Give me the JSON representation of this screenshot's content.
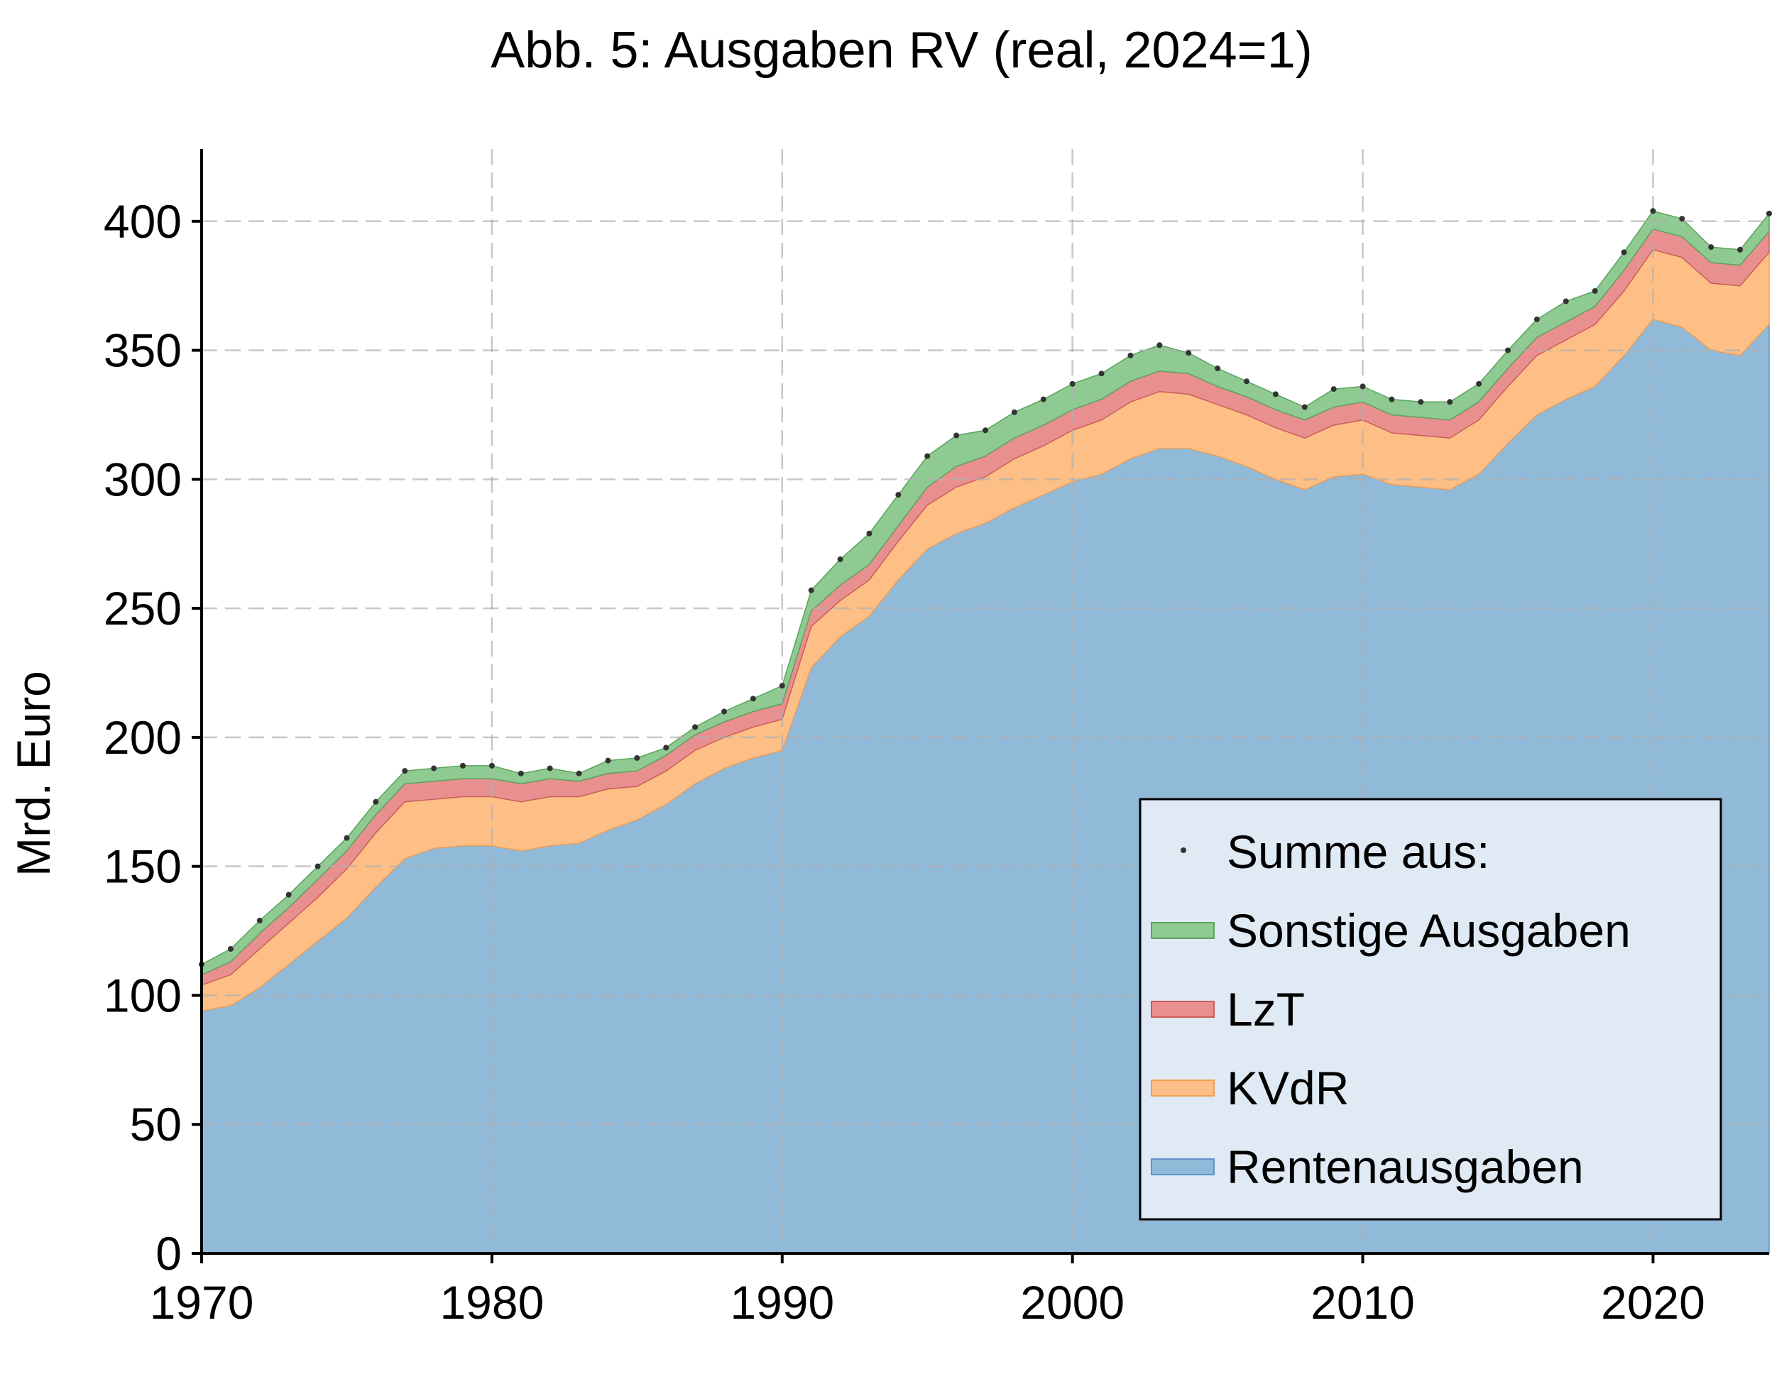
{
  "chart_data": {
    "type": "area",
    "title": "Abb. 5: Ausgaben RV (real, 2024=1)",
    "xlabel": "",
    "ylabel": "Mrd. Euro",
    "xlim": [
      1970,
      2024
    ],
    "ylim": [
      0,
      428
    ],
    "xticks": [
      1970,
      1980,
      1990,
      2000,
      2010,
      2020
    ],
    "xtick_labels": [
      "1970",
      "1980",
      "1990",
      "2000",
      "2010",
      "2020"
    ],
    "yticks": [
      0,
      50,
      100,
      150,
      200,
      250,
      300,
      350,
      400
    ],
    "ytick_labels": [
      "0",
      "50",
      "100",
      "150",
      "200",
      "250",
      "300",
      "350",
      "400"
    ],
    "grid": true,
    "legend_position": "bottom-right",
    "x": [
      1970,
      1971,
      1972,
      1973,
      1974,
      1975,
      1976,
      1977,
      1978,
      1979,
      1980,
      1981,
      1982,
      1983,
      1984,
      1985,
      1986,
      1987,
      1988,
      1989,
      1990,
      1991,
      1992,
      1993,
      1994,
      1995,
      1996,
      1997,
      1998,
      1999,
      2000,
      2001,
      2002,
      2003,
      2004,
      2005,
      2006,
      2007,
      2008,
      2009,
      2010,
      2011,
      2012,
      2013,
      2014,
      2015,
      2016,
      2017,
      2018,
      2019,
      2020,
      2021,
      2022,
      2023,
      2024
    ],
    "series": [
      {
        "name": "Rentenausgaben",
        "color": "#91b9d8",
        "values": [
          94,
          96,
          103,
          112,
          121,
          130,
          142,
          153,
          157,
          158,
          158,
          156,
          158,
          159,
          164,
          168,
          174,
          182,
          188,
          192,
          195,
          227,
          239,
          247,
          261,
          273,
          279,
          283,
          289,
          294,
          299,
          302,
          308,
          312,
          312,
          309,
          305,
          300,
          296,
          301,
          302,
          298,
          297,
          296,
          302,
          314,
          325,
          331,
          336,
          348,
          362,
          359,
          350,
          348,
          360
        ]
      },
      {
        "name": "KVdR",
        "color": "#fdbf86",
        "values": [
          10,
          12,
          15,
          16,
          17,
          19,
          21,
          22,
          19,
          19,
          19,
          19,
          19,
          18,
          16,
          13,
          13,
          13,
          12,
          12,
          12,
          16,
          14,
          14,
          15,
          17,
          18,
          18,
          19,
          19,
          20,
          21,
          22,
          22,
          21,
          20,
          20,
          20,
          20,
          20,
          21,
          20,
          20,
          20,
          21,
          22,
          23,
          23,
          24,
          25,
          27,
          27,
          26,
          27,
          28
        ]
      },
      {
        "name": "LzT",
        "color": "#e89090",
        "values": [
          4,
          5,
          6,
          6,
          7,
          7,
          7,
          7,
          7,
          7,
          7,
          7,
          7,
          6,
          6,
          6,
          6,
          6,
          6,
          6,
          6,
          6,
          6,
          6,
          6,
          7,
          8,
          8,
          8,
          8,
          8,
          8,
          8,
          8,
          8,
          7,
          7,
          7,
          7,
          7,
          7,
          7,
          7,
          7,
          7,
          7,
          7,
          7,
          7,
          8,
          8,
          8,
          8,
          8,
          8
        ]
      },
      {
        "name": "Sonstige Ausgaben",
        "color": "#8fca92",
        "values": [
          4,
          5,
          5,
          5,
          5,
          5,
          5,
          5,
          5,
          5,
          5,
          4,
          4,
          3,
          5,
          5,
          3,
          3,
          4,
          5,
          7,
          8,
          10,
          12,
          12,
          12,
          12,
          10,
          10,
          10,
          10,
          10,
          10,
          10,
          8,
          7,
          6,
          6,
          5,
          7,
          6,
          6,
          6,
          7,
          7,
          7,
          7,
          8,
          6,
          7,
          7,
          7,
          6,
          6,
          7
        ]
      }
    ],
    "total_series": {
      "name": "Summe aus:",
      "values": [
        112,
        118,
        129,
        139,
        150,
        161,
        175,
        187,
        188,
        189,
        189,
        186,
        188,
        186,
        191,
        192,
        196,
        204,
        210,
        215,
        220,
        257,
        269,
        279,
        294,
        309,
        317,
        319,
        326,
        331,
        337,
        341,
        348,
        352,
        349,
        343,
        338,
        333,
        328,
        335,
        336,
        331,
        330,
        330,
        337,
        350,
        362,
        369,
        373,
        388,
        404,
        401,
        390,
        389,
        403
      ]
    },
    "legend": [
      "Summe aus:",
      "Sonstige Ausgaben",
      "LzT",
      "KVdR",
      "Rentenausgaben"
    ]
  }
}
